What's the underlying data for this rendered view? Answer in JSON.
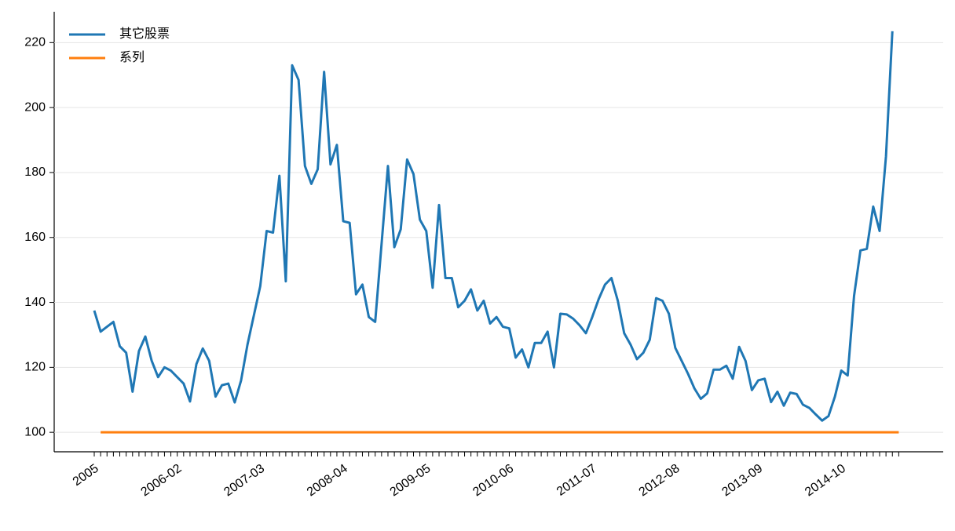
{
  "chart_data": {
    "type": "line",
    "categories": [
      "2005",
      null,
      null,
      null,
      null,
      null,
      null,
      null,
      null,
      null,
      null,
      null,
      null,
      "2006-02",
      null,
      null,
      null,
      null,
      null,
      null,
      null,
      null,
      null,
      null,
      null,
      null,
      "2007-03",
      null,
      null,
      null,
      null,
      null,
      null,
      null,
      null,
      null,
      null,
      null,
      null,
      "2008-04",
      null,
      null,
      null,
      null,
      null,
      null,
      null,
      null,
      null,
      null,
      null,
      null,
      "2009-05",
      null,
      null,
      null,
      null,
      null,
      null,
      null,
      null,
      null,
      null,
      null,
      null,
      "2010-06",
      null,
      null,
      null,
      null,
      null,
      null,
      null,
      null,
      null,
      null,
      null,
      null,
      "2011-07",
      null,
      null,
      null,
      null,
      null,
      null,
      null,
      null,
      null,
      null,
      null,
      null,
      "2012-08",
      null,
      null,
      null,
      null,
      null,
      null,
      null,
      null,
      null,
      null,
      null,
      null,
      "2013-09",
      null,
      null,
      null,
      null,
      null,
      null,
      null,
      null,
      null,
      null,
      null,
      null,
      "2014-10",
      null,
      null,
      null,
      null,
      null,
      null,
      null,
      null,
      null
    ],
    "series": [
      {
        "name": "其它股票",
        "color": "#1f77b4",
        "values": [
          137.5,
          131,
          132.5,
          134,
          126.5,
          124.5,
          112.5,
          125,
          129.5,
          122,
          117,
          120,
          119,
          117,
          115,
          109.5,
          121,
          125.8,
          122,
          111,
          114.5,
          115,
          109.2,
          116,
          127,
          136,
          145,
          162,
          161.5,
          179,
          146.5,
          213,
          208.5,
          182,
          176.5,
          181,
          211,
          182.5,
          188.5,
          165,
          164.5,
          142.5,
          145.5,
          135.5,
          134,
          158,
          182,
          157,
          162.5,
          184,
          179.5,
          165.5,
          162,
          144.5,
          170,
          147.5,
          147.5,
          138.5,
          140.5,
          144,
          137.5,
          140.5,
          133.5,
          135.5,
          132.5,
          132,
          123,
          125.5,
          120,
          127.5,
          127.5,
          131,
          120,
          136.5,
          136.3,
          135,
          133,
          130.5,
          135.5,
          141,
          145.5,
          147.5,
          140.5,
          130.5,
          127,
          122.5,
          124.5,
          128.5,
          141.3,
          140.5,
          136.5,
          126,
          122,
          118,
          113.5,
          110.3,
          112,
          119.3,
          119.3,
          120.5,
          116.5,
          126.3,
          122,
          113,
          116,
          116.5,
          109.3,
          112.5,
          108.2,
          112.2,
          111.8,
          108.5,
          107.5,
          105.5,
          103.6,
          105,
          111,
          119,
          117.5,
          142,
          156,
          156.5,
          169.5,
          162,
          185,
          223.5,
          null
        ]
      },
      {
        "name": "系列",
        "color": "#ff7f0e",
        "values": [
          null,
          100,
          100,
          100,
          100,
          100,
          100,
          100,
          100,
          100,
          100,
          100,
          100,
          100,
          100,
          100,
          100,
          100,
          100,
          100,
          100,
          100,
          100,
          100,
          100,
          100,
          100,
          100,
          100,
          100,
          100,
          100,
          100,
          100,
          100,
          100,
          100,
          100,
          100,
          100,
          100,
          100,
          100,
          100,
          100,
          100,
          100,
          100,
          100,
          100,
          100,
          100,
          100,
          100,
          100,
          100,
          100,
          100,
          100,
          100,
          100,
          100,
          100,
          100,
          100,
          100,
          100,
          100,
          100,
          100,
          100,
          100,
          100,
          100,
          100,
          100,
          100,
          100,
          100,
          100,
          100,
          100,
          100,
          100,
          100,
          100,
          100,
          100,
          100,
          100,
          100,
          100,
          100,
          100,
          100,
          100,
          100,
          100,
          100,
          100,
          100,
          100,
          100,
          100,
          100,
          100,
          100,
          100,
          100,
          100,
          100,
          100,
          100,
          100,
          100,
          100,
          100,
          100,
          100,
          100,
          100,
          100,
          100,
          100,
          100,
          100,
          100
        ]
      }
    ],
    "ylim": [
      94,
      229.5
    ],
    "yticks": [
      100,
      120,
      140,
      160,
      180,
      200,
      220
    ],
    "grid": true,
    "legend": "upper left"
  }
}
